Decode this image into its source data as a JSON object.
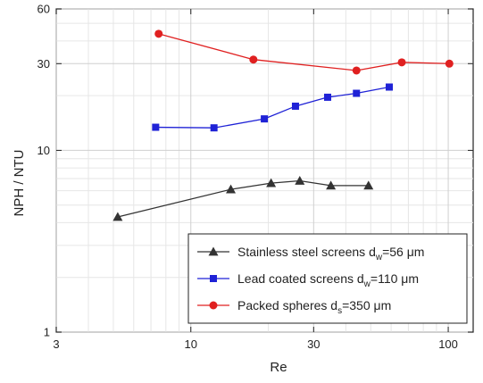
{
  "chart_data": {
    "type": "line",
    "title": "",
    "xlabel": "Re",
    "ylabel": "NPH / NTU",
    "xscale": "log",
    "yscale": "log",
    "xlim": [
      3,
      125
    ],
    "ylim": [
      1,
      60
    ],
    "x_ticks": [
      3,
      10,
      30,
      100
    ],
    "x_tick_labels": [
      "3",
      "10",
      "30",
      "100"
    ],
    "y_ticks": [
      1,
      10,
      30,
      60
    ],
    "y_tick_labels": [
      "1",
      "10",
      "30",
      "60"
    ],
    "grid": true,
    "legend_position": "bottom-right",
    "series": [
      {
        "name": "Stainless steel screens d_w=56 μm",
        "legend_main": "Stainless steel screens d",
        "legend_sub": "w",
        "legend_tail": "=56 μm",
        "color": "#333333",
        "marker": "triangle",
        "x": [
          5.2,
          14.3,
          20.5,
          26.5,
          35,
          49
        ],
        "y": [
          4.3,
          6.1,
          6.6,
          6.8,
          6.4,
          6.4
        ]
      },
      {
        "name": "Lead coated screens d_w=110 μm",
        "legend_main": "Lead coated screens d",
        "legend_sub": "w",
        "legend_tail": "=110 μm",
        "color": "#1f22d6",
        "marker": "square",
        "x": [
          7.3,
          12.3,
          19.3,
          25.5,
          34,
          44,
          59
        ],
        "y": [
          13.4,
          13.3,
          14.9,
          17.5,
          19.6,
          20.6,
          22.3
        ]
      },
      {
        "name": "Packed spheres d_s=350 μm",
        "legend_main": "Packed spheres d",
        "legend_sub": "s",
        "legend_tail": "=350 μm",
        "color": "#e02020",
        "marker": "circle",
        "x": [
          7.5,
          17.5,
          44,
          66,
          101
        ],
        "y": [
          43.8,
          31.6,
          27.5,
          30.5,
          30
        ]
      }
    ]
  }
}
